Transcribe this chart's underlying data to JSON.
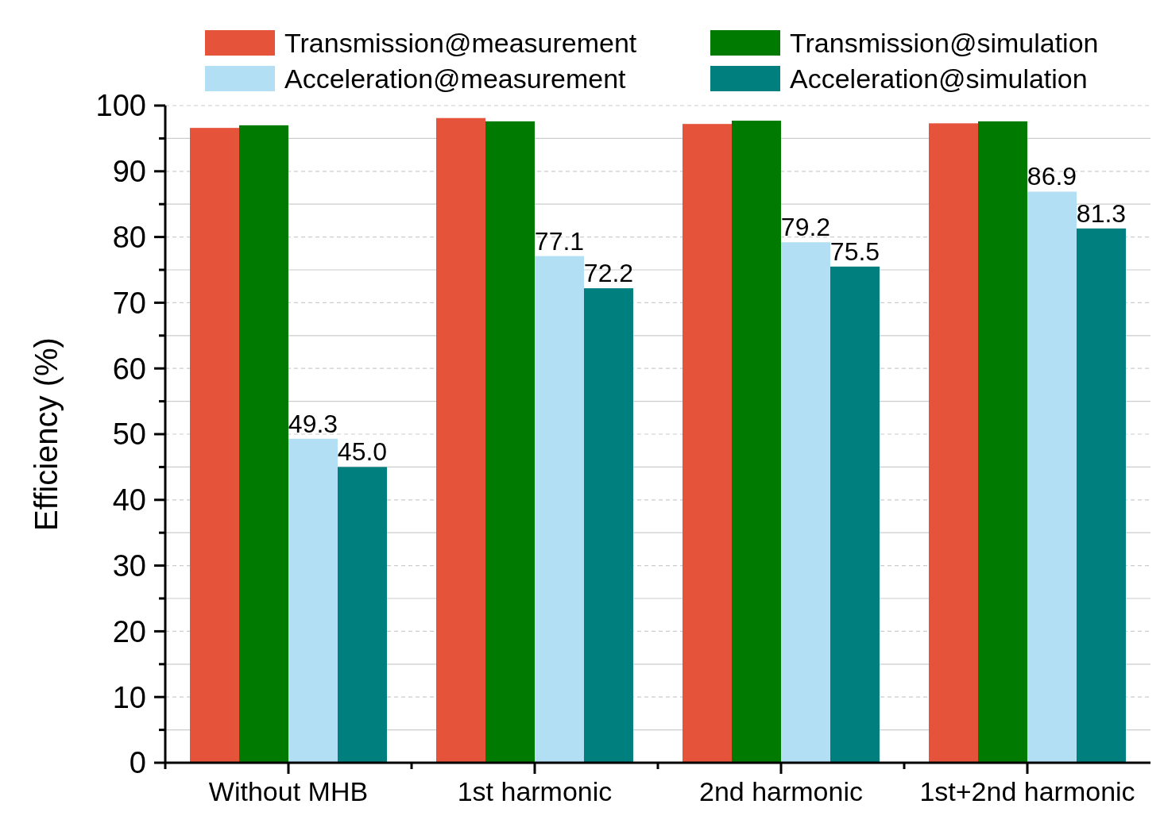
{
  "chart_data": {
    "type": "bar",
    "ylabel": "Efficiency (%)",
    "categories": [
      "Without MHB",
      "1st harmonic",
      "2nd harmonic",
      "1st+2nd harmonic"
    ],
    "series": [
      {
        "name": "Transmission@measurement",
        "color": "#e5533b",
        "values": [
          96.6,
          98.1,
          97.2,
          97.3
        ]
      },
      {
        "name": "Transmission@simulation",
        "color": "#007a00",
        "values": [
          97.0,
          97.6,
          97.7,
          97.6
        ]
      },
      {
        "name": "Acceleration@measurement",
        "color": "#b3dff5",
        "values": [
          49.3,
          77.1,
          79.2,
          86.9
        ],
        "value_labels": [
          "49.3",
          "77.1",
          "79.2",
          "86.9"
        ]
      },
      {
        "name": "Acceleration@simulation",
        "color": "#007f7f",
        "values": [
          45.0,
          72.2,
          75.5,
          81.3
        ],
        "value_labels": [
          "45.0",
          "72.2",
          "75.5",
          "81.3"
        ]
      }
    ],
    "ylim": [
      0,
      100
    ],
    "yticks": [
      0,
      {
        "value": 5,
        "label": null
      },
      10,
      {
        "value": 15,
        "label": null
      },
      20,
      {
        "value": 25,
        "label": null
      },
      30,
      {
        "value": 35,
        "label": null
      },
      40,
      {
        "value": 45,
        "label": null
      },
      50,
      {
        "value": 55,
        "label": null
      },
      60,
      {
        "value": 65,
        "label": null
      },
      70,
      {
        "value": 75,
        "label": null
      },
      80,
      {
        "value": 85,
        "label": null
      },
      90,
      {
        "value": 95,
        "label": null
      },
      100
    ],
    "grid": "y",
    "legend": "top"
  }
}
